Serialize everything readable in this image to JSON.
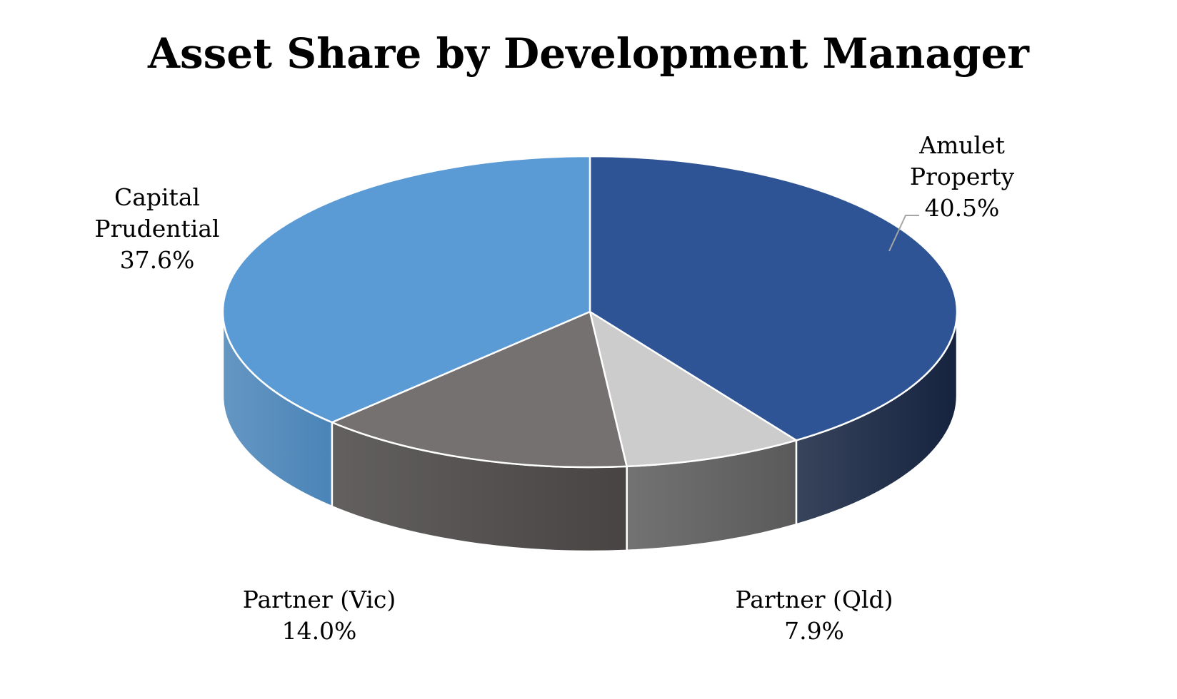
{
  "chart_data": {
    "type": "pie",
    "title": "Asset Share by Development Manager",
    "slices": [
      {
        "label_lines": [
          "Amulet",
          "Property"
        ],
        "value": 40.5,
        "value_label": "40.5%",
        "color": "#2f5496",
        "side_color": "#15233f",
        "label_color": "#000000"
      },
      {
        "label_lines": [
          "Partner (Qld)"
        ],
        "value": 7.9,
        "value_label": "7.9%",
        "color": "#cdcccd",
        "side_color": "#5a5a5a",
        "label_color": "#000000"
      },
      {
        "label_lines": [
          "Partner (Vic)"
        ],
        "value": 14.0,
        "value_label": "14.0%",
        "color": "#757170",
        "side_color": "#474443",
        "label_color": "#000000"
      },
      {
        "label_lines": [
          "Capital",
          "Prudential"
        ],
        "value": 37.6,
        "value_label": "37.6%",
        "color": "#5b9bd5",
        "side_color": "#4a84b8",
        "label_color": "#000000"
      }
    ],
    "start": "12 o'clock",
    "direction": "clockwise",
    "view": "3d-perspective",
    "legend": "none",
    "data_labels": "category-name and percentage"
  }
}
